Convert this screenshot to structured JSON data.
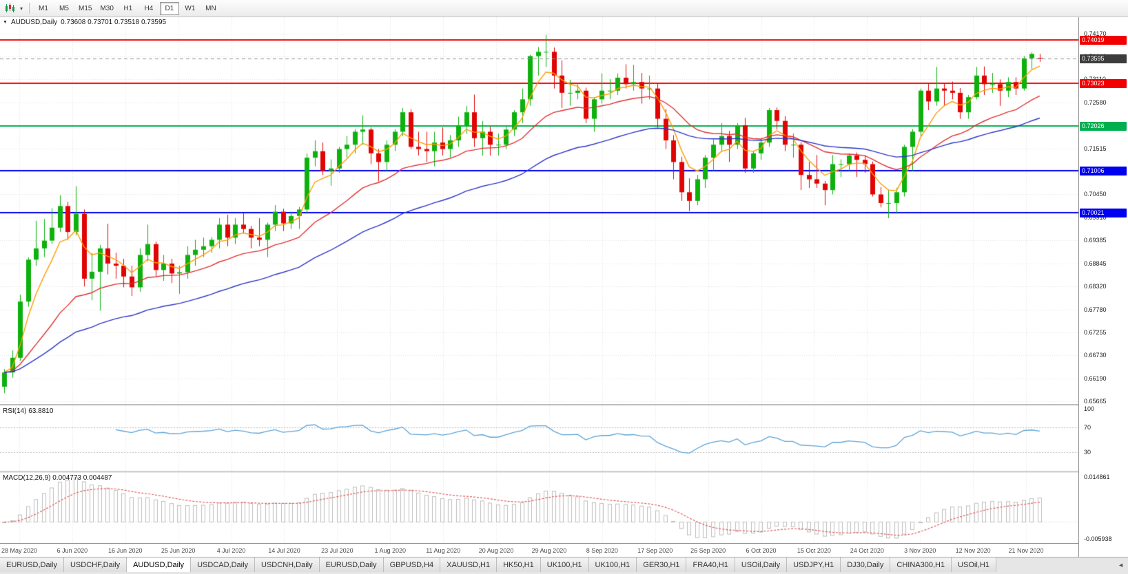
{
  "icons": {
    "chevron_down": "▾",
    "collapse_triangle": "▼",
    "tab_scroll": "◄"
  },
  "toolbar": {
    "timeframes": [
      "M1",
      "M5",
      "M15",
      "M30",
      "H1",
      "H4",
      "D1",
      "W1",
      "MN"
    ],
    "active_timeframe": "D1"
  },
  "chart": {
    "symbol_label": "AUDUSD,Daily",
    "ohlc_label": "0.73608 0.73701 0.73518 0.73595",
    "price_axis": {
      "view_top": 0.7455,
      "view_bottom": 0.656,
      "ticks": [
        "0.74170",
        "0.73640",
        "0.73110",
        "0.72580",
        "0.72050",
        "0.71515",
        "0.70985",
        "0.70450",
        "0.69910",
        "0.69385",
        "0.68845",
        "0.68320",
        "0.67780",
        "0.67255",
        "0.66730",
        "0.66190",
        "0.65665"
      ]
    },
    "levels": [
      {
        "value": 0.74019,
        "label": "0.74019",
        "color": "#f20000"
      },
      {
        "value": 0.73023,
        "label": "0.73023",
        "color": "#f20000"
      },
      {
        "value": 0.72026,
        "label": "0.72026",
        "color": "#00b050"
      },
      {
        "value": 0.71006,
        "label": "0.71006",
        "color": "#0000f0"
      },
      {
        "value": 0.70021,
        "label": "0.70021",
        "color": "#0000f0"
      }
    ],
    "current_price": {
      "value": 0.73595,
      "label": "0.73595",
      "color": "#3c3c3c"
    }
  },
  "rsi_pane": {
    "header": "RSI(14) 63.8810",
    "value": "63.8810",
    "axis_labels": [
      100,
      70,
      30
    ],
    "line_color": "#5ca3d6"
  },
  "macd_pane": {
    "header": "MACD(12,26,9) 0.004773 0.004487",
    "values": [
      "0.004773",
      "0.004487"
    ],
    "axis_label_top": "0.014861",
    "axis_label_bottom": "-0.005938",
    "histogram_color": "#bcbcbc",
    "signal_color": "#e05a5a"
  },
  "date_axis": {
    "labels": [
      "28 May 2020",
      "6 Jun 2020",
      "16 Jun 2020",
      "25 Jun 2020",
      "4 Jul 2020",
      "14 Jul 2020",
      "23 Jul 2020",
      "1 Aug 2020",
      "11 Aug 2020",
      "20 Aug 2020",
      "29 Aug 2020",
      "8 Sep 2020",
      "17 Sep 2020",
      "26 Sep 2020",
      "6 Oct 2020",
      "15 Oct 2020",
      "24 Oct 2020",
      "3 Nov 2020",
      "12 Nov 2020",
      "21 Nov 2020"
    ]
  },
  "tabbar": {
    "tabs": [
      "EURUSD,Daily",
      "USDCHF,Daily",
      "AUDUSD,Daily",
      "USDCAD,Daily",
      "USDCNH,Daily",
      "EURUSD,Daily",
      "GBPUSD,H4",
      "XAUUSD,H1",
      "HK50,H1",
      "UK100,H1",
      "UK100,H1",
      "GER30,H1",
      "FRA40,H1",
      "USOil,Daily",
      "USDJPY,H1",
      "DJ30,Daily",
      "CHINA300,H1",
      "USOil,H1"
    ],
    "active_index": 2
  },
  "chart_data": {
    "type": "candlestick",
    "title": "AUDUSD Daily",
    "colors": {
      "bull": "#0db10d",
      "bear": "#e00404",
      "grid": "#e3e3e3"
    },
    "overlays": [
      {
        "name": "ma-fast",
        "period": 5,
        "color": "#ff9c00"
      },
      {
        "name": "ma-mid",
        "period": 20,
        "color": "#e03030"
      },
      {
        "name": "ma-slow",
        "period": 45,
        "color": "#2d35c8"
      }
    ],
    "indicators": [
      {
        "type": "rsi",
        "period": 14,
        "current": 63.881,
        "levels": [
          70,
          30
        ]
      },
      {
        "type": "macd",
        "fast": 12,
        "slow": 26,
        "signal": 9,
        "current_macd": 0.004773,
        "current_signal": 0.004487
      }
    ],
    "candles": [
      [
        0.66,
        0.6641,
        0.6585,
        0.6633
      ],
      [
        0.6633,
        0.6684,
        0.6621,
        0.6667
      ],
      [
        0.6667,
        0.6813,
        0.666,
        0.6797
      ],
      [
        0.6797,
        0.6899,
        0.6785,
        0.6894
      ],
      [
        0.6894,
        0.6984,
        0.688,
        0.692
      ],
      [
        0.692,
        0.6988,
        0.69,
        0.6938
      ],
      [
        0.6938,
        0.7013,
        0.693,
        0.6968
      ],
      [
        0.6968,
        0.7043,
        0.6958,
        0.7018
      ],
      [
        0.7018,
        0.7028,
        0.694,
        0.6958
      ],
      [
        0.6958,
        0.7064,
        0.695,
        0.7
      ],
      [
        0.7,
        0.701,
        0.6832,
        0.685
      ],
      [
        0.685,
        0.691,
        0.68,
        0.6866
      ],
      [
        0.6866,
        0.6928,
        0.6776,
        0.692
      ],
      [
        0.692,
        0.6977,
        0.686,
        0.6885
      ],
      [
        0.6885,
        0.691,
        0.685,
        0.688
      ],
      [
        0.688,
        0.6896,
        0.683,
        0.6855
      ],
      [
        0.6855,
        0.688,
        0.681,
        0.683
      ],
      [
        0.683,
        0.692,
        0.682,
        0.6905
      ],
      [
        0.6905,
        0.6975,
        0.689,
        0.693
      ],
      [
        0.693,
        0.6936,
        0.6855,
        0.687
      ],
      [
        0.687,
        0.6905,
        0.6845,
        0.6885
      ],
      [
        0.6885,
        0.6896,
        0.684,
        0.6862
      ],
      [
        0.6862,
        0.688,
        0.6815,
        0.6865
      ],
      [
        0.6865,
        0.6925,
        0.685,
        0.6905
      ],
      [
        0.6905,
        0.694,
        0.688,
        0.6917
      ],
      [
        0.6917,
        0.6945,
        0.69,
        0.6925
      ],
      [
        0.6925,
        0.6946,
        0.691,
        0.694
      ],
      [
        0.694,
        0.699,
        0.692,
        0.6975
      ],
      [
        0.6975,
        0.6998,
        0.6925,
        0.6945
      ],
      [
        0.6945,
        0.699,
        0.693,
        0.6975
      ],
      [
        0.6975,
        0.7001,
        0.6955,
        0.6965
      ],
      [
        0.6965,
        0.6972,
        0.692,
        0.6945
      ],
      [
        0.6945,
        0.699,
        0.6925,
        0.694
      ],
      [
        0.694,
        0.698,
        0.69,
        0.6975
      ],
      [
        0.6975,
        0.702,
        0.696,
        0.7005
      ],
      [
        0.7005,
        0.7012,
        0.696,
        0.6978
      ],
      [
        0.6978,
        0.7005,
        0.6965,
        0.6995
      ],
      [
        0.6995,
        0.7016,
        0.6965,
        0.701
      ],
      [
        0.701,
        0.714,
        0.7,
        0.713
      ],
      [
        0.713,
        0.717,
        0.711,
        0.7145
      ],
      [
        0.7145,
        0.7165,
        0.709,
        0.71
      ],
      [
        0.71,
        0.7126,
        0.7065,
        0.7105
      ],
      [
        0.7105,
        0.7155,
        0.7095,
        0.715
      ],
      [
        0.715,
        0.718,
        0.713,
        0.716
      ],
      [
        0.716,
        0.7196,
        0.714,
        0.719
      ],
      [
        0.719,
        0.7228,
        0.716,
        0.7195
      ],
      [
        0.7195,
        0.72,
        0.7115,
        0.714
      ],
      [
        0.714,
        0.715,
        0.7075,
        0.712
      ],
      [
        0.712,
        0.717,
        0.71,
        0.716
      ],
      [
        0.716,
        0.7196,
        0.7145,
        0.719
      ],
      [
        0.719,
        0.7245,
        0.718,
        0.7235
      ],
      [
        0.7235,
        0.7242,
        0.715,
        0.7155
      ],
      [
        0.7155,
        0.719,
        0.7135,
        0.715
      ],
      [
        0.715,
        0.719,
        0.712,
        0.7145
      ],
      [
        0.7145,
        0.719,
        0.711,
        0.7165
      ],
      [
        0.7165,
        0.72,
        0.7135,
        0.715
      ],
      [
        0.715,
        0.7182,
        0.713,
        0.717
      ],
      [
        0.717,
        0.7225,
        0.7155,
        0.7205
      ],
      [
        0.7205,
        0.725,
        0.7185,
        0.7235
      ],
      [
        0.7235,
        0.7276,
        0.7155,
        0.7175
      ],
      [
        0.7175,
        0.7215,
        0.7135,
        0.719
      ],
      [
        0.719,
        0.7202,
        0.7135,
        0.716
      ],
      [
        0.716,
        0.7186,
        0.7135,
        0.716
      ],
      [
        0.716,
        0.7205,
        0.715,
        0.7195
      ],
      [
        0.7195,
        0.724,
        0.718,
        0.7235
      ],
      [
        0.7235,
        0.729,
        0.721,
        0.7265
      ],
      [
        0.7265,
        0.7368,
        0.725,
        0.7365
      ],
      [
        0.7365,
        0.7386,
        0.732,
        0.7375
      ],
      [
        0.7375,
        0.7414,
        0.734,
        0.7375
      ],
      [
        0.7375,
        0.7385,
        0.729,
        0.732
      ],
      [
        0.732,
        0.7355,
        0.7245,
        0.728
      ],
      [
        0.728,
        0.731,
        0.725,
        0.728
      ],
      [
        0.728,
        0.73,
        0.7265,
        0.7285
      ],
      [
        0.7285,
        0.7292,
        0.721,
        0.722
      ],
      [
        0.722,
        0.727,
        0.719,
        0.7265
      ],
      [
        0.7265,
        0.7325,
        0.7255,
        0.7285
      ],
      [
        0.7285,
        0.7312,
        0.7265,
        0.7285
      ],
      [
        0.7285,
        0.7325,
        0.7275,
        0.7315
      ],
      [
        0.7315,
        0.7346,
        0.729,
        0.73
      ],
      [
        0.73,
        0.7345,
        0.7285,
        0.7305
      ],
      [
        0.7305,
        0.7326,
        0.7255,
        0.729
      ],
      [
        0.729,
        0.732,
        0.7265,
        0.729
      ],
      [
        0.729,
        0.7302,
        0.72,
        0.722
      ],
      [
        0.722,
        0.7242,
        0.715,
        0.717
      ],
      [
        0.717,
        0.7182,
        0.708,
        0.712
      ],
      [
        0.712,
        0.7132,
        0.703,
        0.705
      ],
      [
        0.705,
        0.7082,
        0.7006,
        0.703
      ],
      [
        0.703,
        0.709,
        0.702,
        0.708
      ],
      [
        0.708,
        0.7136,
        0.706,
        0.713
      ],
      [
        0.713,
        0.7172,
        0.71,
        0.716
      ],
      [
        0.716,
        0.721,
        0.7145,
        0.718
      ],
      [
        0.718,
        0.7192,
        0.712,
        0.716
      ],
      [
        0.716,
        0.721,
        0.715,
        0.7205
      ],
      [
        0.7205,
        0.7222,
        0.7095,
        0.7105
      ],
      [
        0.7105,
        0.7146,
        0.7095,
        0.714
      ],
      [
        0.714,
        0.7175,
        0.7125,
        0.7165
      ],
      [
        0.7165,
        0.7245,
        0.7155,
        0.724
      ],
      [
        0.724,
        0.7246,
        0.7195,
        0.7215
      ],
      [
        0.7215,
        0.7226,
        0.7145,
        0.716
      ],
      [
        0.716,
        0.7186,
        0.713,
        0.716
      ],
      [
        0.716,
        0.7166,
        0.7055,
        0.709
      ],
      [
        0.709,
        0.712,
        0.706,
        0.708
      ],
      [
        0.708,
        0.7136,
        0.706,
        0.707
      ],
      [
        0.707,
        0.7076,
        0.702,
        0.7055
      ],
      [
        0.7055,
        0.7136,
        0.7045,
        0.7115
      ],
      [
        0.7115,
        0.7126,
        0.7085,
        0.7115
      ],
      [
        0.7115,
        0.714,
        0.71,
        0.7135
      ],
      [
        0.7135,
        0.7142,
        0.7085,
        0.7125
      ],
      [
        0.7125,
        0.7136,
        0.7095,
        0.7115
      ],
      [
        0.7115,
        0.7121,
        0.704,
        0.7045
      ],
      [
        0.7045,
        0.7062,
        0.7015,
        0.7025
      ],
      [
        0.7025,
        0.7056,
        0.699,
        0.7025
      ],
      [
        0.7025,
        0.706,
        0.7,
        0.705
      ],
      [
        0.705,
        0.716,
        0.704,
        0.7155
      ],
      [
        0.7155,
        0.7196,
        0.71,
        0.719
      ],
      [
        0.719,
        0.729,
        0.718,
        0.7285
      ],
      [
        0.7285,
        0.7302,
        0.724,
        0.726
      ],
      [
        0.726,
        0.734,
        0.725,
        0.729
      ],
      [
        0.729,
        0.7302,
        0.725,
        0.7285
      ],
      [
        0.7285,
        0.7306,
        0.7265,
        0.728
      ],
      [
        0.728,
        0.7291,
        0.722,
        0.7235
      ],
      [
        0.7235,
        0.7275,
        0.722,
        0.727
      ],
      [
        0.727,
        0.734,
        0.7265,
        0.732
      ],
      [
        0.732,
        0.7341,
        0.7275,
        0.73
      ],
      [
        0.73,
        0.7326,
        0.728,
        0.73
      ],
      [
        0.73,
        0.7311,
        0.725,
        0.7285
      ],
      [
        0.7285,
        0.7316,
        0.727,
        0.7305
      ],
      [
        0.7305,
        0.7316,
        0.7275,
        0.729
      ],
      [
        0.729,
        0.7365,
        0.7285,
        0.736
      ],
      [
        0.736,
        0.7374,
        0.7335,
        0.737
      ],
      [
        0.73608,
        0.73701,
        0.73518,
        0.73595
      ]
    ]
  }
}
